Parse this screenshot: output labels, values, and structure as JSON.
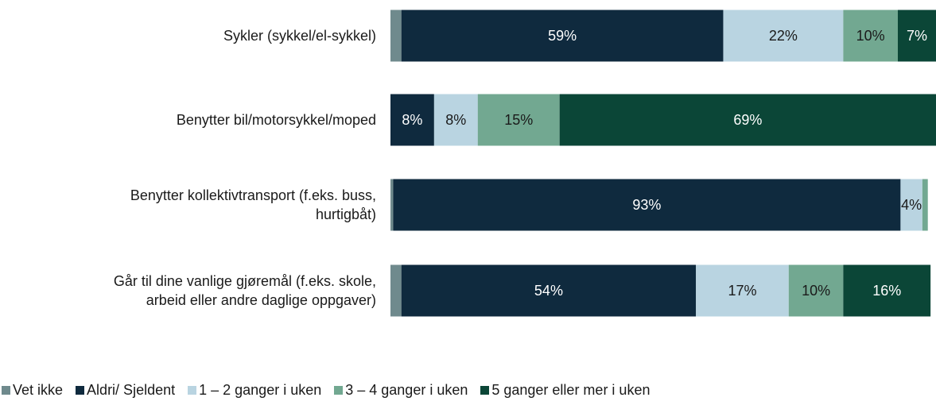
{
  "chart_data": {
    "type": "stacked-bar-horizontal",
    "categories": [
      "Sykler (sykkel/el-sykkel)",
      "Benytter bil/motorsykkel/moped",
      "Benytter kollektivtransport (f.eks. buss,\nhurtigbåt)",
      "Går til dine vanlige gjøremål (f.eks. skole,\narbeid eller andre daglige oppgaver)"
    ],
    "xlim": [
      0,
      100
    ],
    "legend": "bottom",
    "series": [
      {
        "name": "Vet ikke",
        "color": "#6f8a8d",
        "values": [
          2,
          0,
          0.5,
          2
        ],
        "value_labels": [
          null,
          null,
          null,
          null
        ]
      },
      {
        "name": "Aldri/ Sjeldent",
        "color": "#0f2a3e",
        "values": [
          59,
          8,
          93,
          54
        ],
        "value_labels": [
          "59%",
          "8%",
          "93%",
          "54%"
        ]
      },
      {
        "name": "1 – 2 ganger i uken",
        "color": "#b9d4e1",
        "values": [
          22,
          8,
          4,
          17
        ],
        "value_labels": [
          "22%",
          "8%",
          "4%",
          "17%"
        ]
      },
      {
        "name": "3 – 4 ganger i uken",
        "color": "#72a891",
        "values": [
          10,
          15,
          1,
          10
        ],
        "value_labels": [
          "10%",
          "15%",
          null,
          "10%"
        ]
      },
      {
        "name": "5 ganger eller mer i uken",
        "color": "#0b4637",
        "values": [
          7,
          69,
          0,
          16
        ],
        "value_labels": [
          "7%",
          "69%",
          null,
          "16%"
        ]
      }
    ]
  }
}
